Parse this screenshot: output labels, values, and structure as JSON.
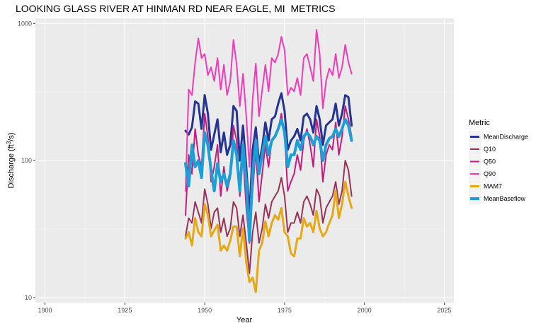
{
  "chart_data": {
    "type": "line",
    "title": "LOOKING GLASS RIVER AT HINMAN RD NEAR EAGLE, MI  METRICS",
    "xlabel": "Year",
    "ylabel": "Discharge (ft³/s)",
    "ylabel_parts": {
      "pre": "Discharge (ft",
      "sup": "3",
      "post": "/s)"
    },
    "x_scale": "linear",
    "y_scale": "log10",
    "xlim": [
      1897,
      2028
    ],
    "ylim": [
      9.2,
      1090
    ],
    "x_ticks": [
      1900,
      1925,
      1950,
      1975,
      2000,
      2025
    ],
    "x_tick_labels": [
      "1900",
      "1925",
      "1950",
      "1975",
      "2000",
      "2025"
    ],
    "y_ticks": [
      10,
      100,
      1000
    ],
    "y_tick_labels": [
      "10",
      "100",
      "1000"
    ],
    "grid": true,
    "legend": {
      "title": "Metric",
      "position": "right"
    },
    "x": [
      1944,
      1945,
      1946,
      1947,
      1948,
      1949,
      1950,
      1951,
      1952,
      1953,
      1954,
      1955,
      1956,
      1957,
      1958,
      1959,
      1960,
      1961,
      1962,
      1963,
      1964,
      1965,
      1966,
      1967,
      1968,
      1969,
      1970,
      1971,
      1972,
      1973,
      1974,
      1975,
      1976,
      1977,
      1978,
      1979,
      1980,
      1981,
      1982,
      1983,
      1984,
      1985,
      1986,
      1987,
      1988,
      1989,
      1990,
      1991,
      1992,
      1993,
      1994,
      1995,
      1996
    ],
    "series": [
      {
        "name": "MeanDischarge",
        "color": "#253494",
        "width": 3,
        "values": [
          165,
          155,
          175,
          270,
          260,
          170,
          300,
          220,
          120,
          155,
          200,
          115,
          160,
          110,
          130,
          250,
          230,
          100,
          180,
          90,
          40,
          120,
          175,
          95,
          125,
          190,
          140,
          200,
          210,
          260,
          310,
          230,
          120,
          140,
          150,
          170,
          140,
          210,
          220,
          200,
          160,
          250,
          200,
          130,
          180,
          190,
          200,
          260,
          180,
          220,
          300,
          290,
          180
        ]
      },
      {
        "name": "Q10",
        "color": "#993258",
        "width": 2,
        "values": [
          28,
          38,
          35,
          50,
          42,
          35,
          62,
          48,
          32,
          42,
          45,
          30,
          38,
          28,
          32,
          50,
          45,
          28,
          40,
          25,
          15,
          30,
          42,
          25,
          32,
          48,
          38,
          50,
          55,
          60,
          75,
          55,
          30,
          35,
          35,
          42,
          35,
          50,
          55,
          48,
          40,
          62,
          55,
          35,
          45,
          50,
          55,
          70,
          48,
          60,
          100,
          85,
          55
        ]
      },
      {
        "name": "Q50",
        "color": "#C51B7D",
        "width": 2,
        "values": [
          40,
          110,
          80,
          170,
          110,
          90,
          220,
          150,
          70,
          90,
          130,
          55,
          90,
          60,
          75,
          180,
          140,
          55,
          110,
          45,
          25,
          60,
          120,
          50,
          80,
          130,
          90,
          140,
          150,
          170,
          220,
          150,
          60,
          70,
          80,
          110,
          85,
          140,
          170,
          130,
          90,
          200,
          150,
          70,
          110,
          130,
          120,
          190,
          110,
          150,
          250,
          200,
          150
        ]
      },
      {
        "name": "Q90",
        "color": "#F23BB8",
        "width": 2,
        "values": [
          60,
          330,
          300,
          520,
          780,
          560,
          600,
          420,
          480,
          380,
          560,
          330,
          500,
          300,
          380,
          760,
          500,
          250,
          430,
          210,
          90,
          280,
          510,
          210,
          330,
          500,
          320,
          560,
          520,
          600,
          800,
          640,
          300,
          340,
          320,
          400,
          300,
          560,
          600,
          480,
          380,
          900,
          600,
          240,
          380,
          470,
          420,
          600,
          400,
          480,
          700,
          520,
          430
        ]
      },
      {
        "name": "MAM7",
        "color": "#E6A817",
        "width": 3,
        "values": [
          27,
          30,
          24,
          38,
          30,
          28,
          48,
          40,
          28,
          31,
          34,
          22,
          24,
          22,
          26,
          33,
          33,
          20,
          32,
          18,
          13,
          14,
          11,
          22,
          25,
          36,
          28,
          35,
          40,
          37,
          45,
          30,
          28,
          21,
          20,
          27,
          27,
          38,
          33,
          35,
          30,
          43,
          32,
          28,
          30,
          35,
          40,
          60,
          38,
          48,
          70,
          55,
          45
        ]
      },
      {
        "name": "MeanBaseflow",
        "color": "#1E9ED6",
        "width": 4,
        "values": [
          95,
          65,
          130,
          90,
          100,
          75,
          160,
          130,
          85,
          60,
          95,
          70,
          80,
          65,
          80,
          140,
          110,
          60,
          130,
          70,
          26,
          80,
          140,
          80,
          110,
          150,
          110,
          140,
          150,
          170,
          200,
          160,
          90,
          110,
          110,
          140,
          120,
          150,
          160,
          150,
          130,
          150,
          140,
          100,
          130,
          145,
          150,
          170,
          150,
          170,
          200,
          180,
          140
        ]
      }
    ]
  }
}
